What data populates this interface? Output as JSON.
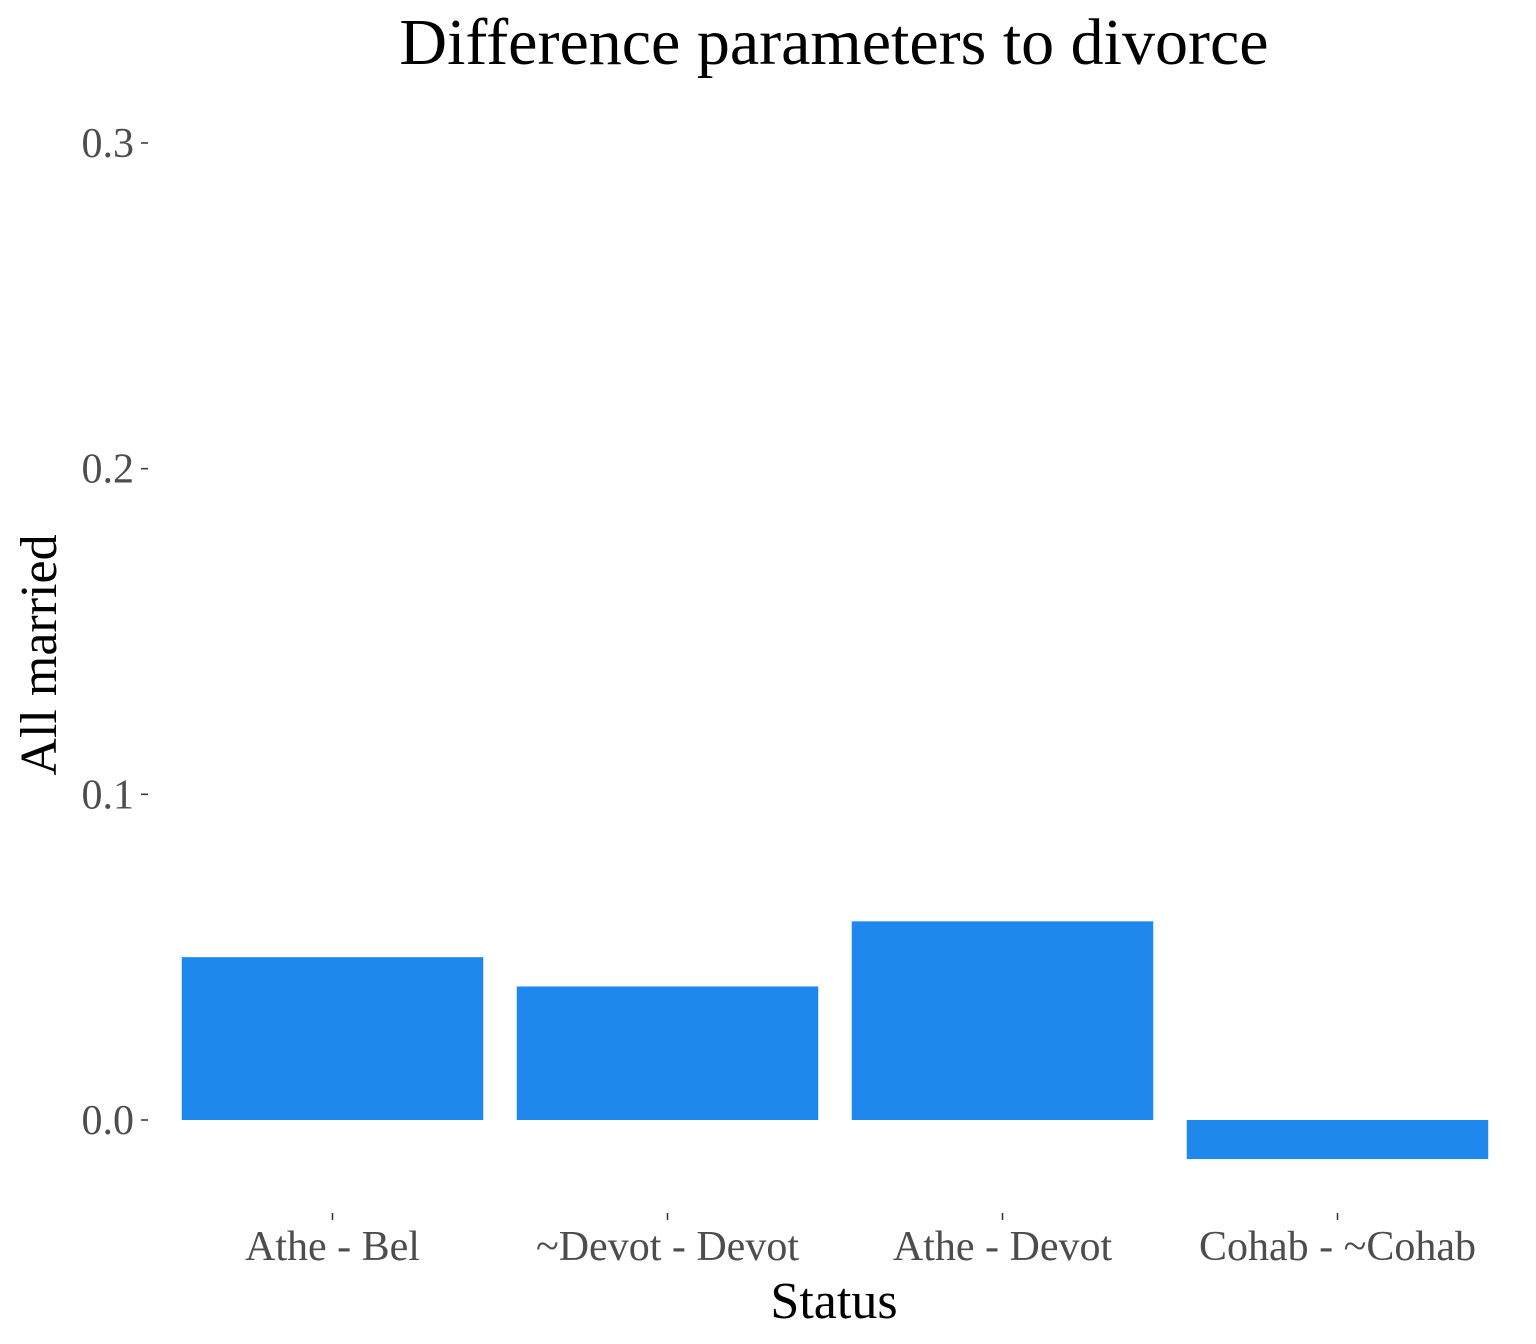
{
  "chart_data": {
    "type": "bar",
    "title": "Difference parameters to divorce",
    "xlabel": "Status",
    "ylabel": "All married",
    "categories": [
      "Athe - Bel",
      "~Devot - Devot",
      "Athe - Devot",
      "Cohab - ~Cohab"
    ],
    "values": [
      0.05,
      0.041,
      0.061,
      -0.012
    ],
    "ylim": [
      -0.025,
      0.3
    ],
    "yticks": [
      0.0,
      0.1,
      0.2,
      0.3
    ],
    "ytick_labels": [
      "0.0",
      "0.1",
      "0.2",
      "0.3"
    ],
    "bar_color": "#1e88ec",
    "grid": false,
    "legend": "none"
  }
}
